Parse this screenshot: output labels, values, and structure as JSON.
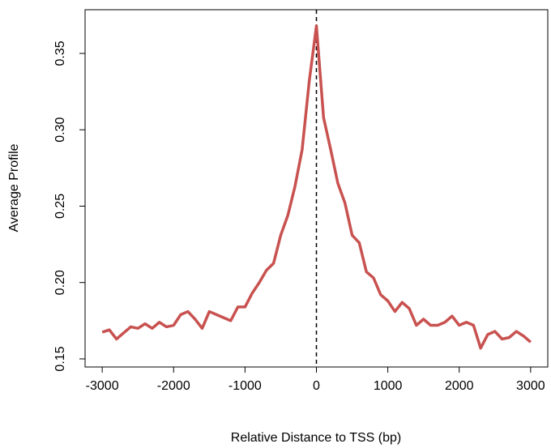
{
  "chart_data": {
    "type": "line",
    "x_label": "Relative Distance to TSS (bp)",
    "y_label": "Average Profile",
    "x": [
      -3000,
      -2900,
      -2800,
      -2700,
      -2600,
      -2500,
      -2400,
      -2300,
      -2200,
      -2100,
      -2000,
      -1900,
      -1800,
      -1700,
      -1600,
      -1500,
      -1400,
      -1300,
      -1200,
      -1100,
      -1000,
      -900,
      -800,
      -700,
      -600,
      -500,
      -400,
      -300,
      -200,
      -100,
      0,
      100,
      200,
      300,
      400,
      500,
      600,
      700,
      800,
      900,
      1000,
      1100,
      1200,
      1300,
      1400,
      1500,
      1600,
      1700,
      1800,
      1900,
      2000,
      2100,
      2200,
      2300,
      2400,
      2500,
      2600,
      2700,
      2800,
      2900,
      3000
    ],
    "series": [
      {
        "name": "Average Profile",
        "color": "#c85250",
        "values": [
          0.1675,
          0.169,
          0.163,
          0.167,
          0.171,
          0.17,
          0.173,
          0.17,
          0.174,
          0.171,
          0.172,
          0.179,
          0.181,
          0.176,
          0.17,
          0.181,
          0.179,
          0.177,
          0.175,
          0.184,
          0.184,
          0.193,
          0.2,
          0.208,
          0.2126,
          0.231,
          0.244,
          0.263,
          0.287,
          0.332,
          0.368,
          0.308,
          0.287,
          0.265,
          0.252,
          0.231,
          0.226,
          0.207,
          0.203,
          0.192,
          0.188,
          0.181,
          0.187,
          0.183,
          0.172,
          0.176,
          0.172,
          0.172,
          0.174,
          0.178,
          0.172,
          0.174,
          0.172,
          0.157,
          0.166,
          0.168,
          0.163,
          0.164,
          0.168,
          0.165,
          0.161
        ]
      }
    ],
    "vline": 0,
    "xlim": [
      -3240,
      3240
    ],
    "ylim": [
      0.1447,
      0.3786
    ],
    "xticks": [
      -3000,
      -2000,
      -1000,
      0,
      1000,
      2000,
      3000
    ],
    "yticks": [
      0.15,
      {
        "value": 0.2,
        "label": "0.20"
      },
      0.25,
      {
        "value": 0.3,
        "label": "0.30"
      },
      0.35
    ]
  }
}
